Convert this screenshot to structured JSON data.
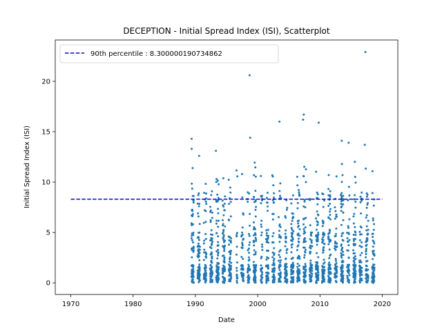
{
  "chart_data": {
    "type": "scatter",
    "title": "DECEPTION - Initial Spread Index (ISI), Scatterplot",
    "xlabel": "Date",
    "ylabel": "Initial Spread Index (ISI)",
    "xlim": [
      1967.5,
      2022.5
    ],
    "ylim": [
      -1.15,
      24.1
    ],
    "x_ticks": [
      1970,
      1980,
      1990,
      2000,
      2010,
      2020
    ],
    "y_ticks": [
      0,
      5,
      10,
      15,
      20
    ],
    "grid": false,
    "legend_position": "top-left",
    "series": [
      {
        "name": "",
        "color": "#1f77b4",
        "marker": "point",
        "x_range": [
          1989.3,
          2018.9
        ],
        "y_range": [
          0,
          22.9
        ],
        "notable_points": [
          {
            "x": 1989.4,
            "y": 14.3
          },
          {
            "x": 1989.4,
            "y": 13.3
          },
          {
            "x": 1990.6,
            "y": 12.6
          },
          {
            "x": 1993.3,
            "y": 13.1
          },
          {
            "x": 1998.7,
            "y": 20.6
          },
          {
            "x": 1998.8,
            "y": 14.4
          },
          {
            "x": 2003.5,
            "y": 16.0
          },
          {
            "x": 2007.4,
            "y": 16.7
          },
          {
            "x": 2007.3,
            "y": 16.2
          },
          {
            "x": 2009.8,
            "y": 15.9
          },
          {
            "x": 2013.5,
            "y": 14.1
          },
          {
            "x": 2014.6,
            "y": 13.9
          },
          {
            "x": 2017.3,
            "y": 22.9
          },
          {
            "x": 2017.2,
            "y": 13.7
          }
        ]
      }
    ],
    "reference_lines": [
      {
        "name": "90th percentile : 8.300000190734862",
        "y": 8.300000190734862,
        "x_range": [
          1970,
          2020
        ],
        "color": "#0000cc",
        "style": "dashed"
      }
    ]
  }
}
